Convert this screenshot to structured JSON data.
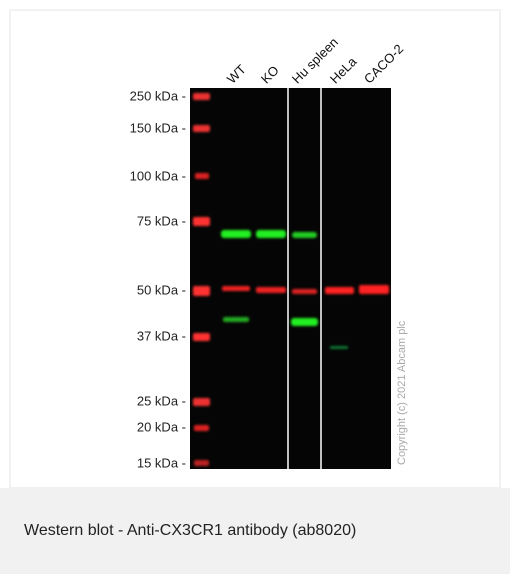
{
  "figure": {
    "markers": [
      "250 kDa -",
      "150 kDa -",
      "100 kDa -",
      "75 kDa -",
      "50 kDa -",
      "37 kDa -",
      "25 kDa -",
      "20 kDa -",
      "15 kDa -"
    ],
    "lanes": [
      "WT",
      "KO",
      "Hu spleen",
      "HeLa",
      "CACO-2"
    ],
    "copyright": "Copyright (c) 2021 Abcam plc",
    "caption": "Western blot - Anti-CX3CR1 antibody (ab8020)"
  }
}
